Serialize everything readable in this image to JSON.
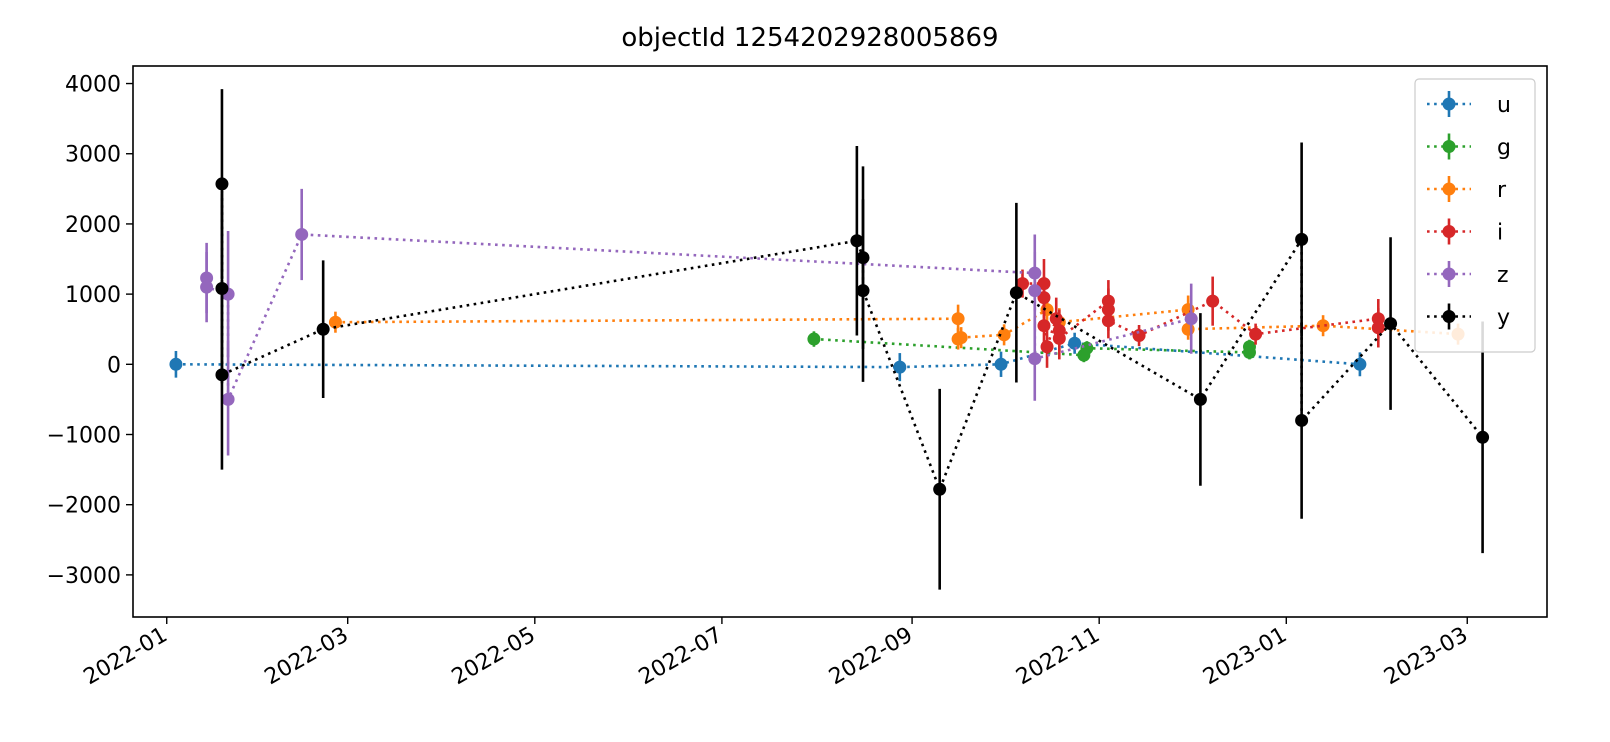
{
  "chart_data": {
    "type": "scatter",
    "title": "objectId 1254202928005869",
    "xlabel": "",
    "ylabel": "",
    "xlim": [
      "2021-12-21",
      "2023-03-27"
    ],
    "ylim": [
      -3600,
      4250
    ],
    "x_ticks": [
      "2022-01",
      "2022-03",
      "2022-05",
      "2022-07",
      "2022-09",
      "2022-11",
      "2023-01",
      "2023-03"
    ],
    "y_ticks": [
      4000,
      3000,
      2000,
      1000,
      0,
      -1000,
      -2000,
      -3000
    ],
    "y_tick_labels": [
      "4000",
      "3000",
      "2000",
      "1000",
      "0",
      "−1000",
      "−2000",
      "−3000"
    ],
    "grid": false,
    "legend_position": "top-right",
    "line_style": "dotted",
    "marker": "circle",
    "error_bars": true,
    "series": [
      {
        "name": "u",
        "color": "#1f77b4",
        "points": [
          {
            "x": "2022-01-04",
            "y": 0,
            "err": 190
          },
          {
            "x": "2022-08-28",
            "y": -40,
            "err": 200
          },
          {
            "x": "2022-09-30",
            "y": 0,
            "err": 180
          },
          {
            "x": "2022-10-24",
            "y": 300,
            "err": 150
          },
          {
            "x": "2023-01-25",
            "y": 0,
            "err": 170
          }
        ]
      },
      {
        "name": "g",
        "color": "#2ca02c",
        "points": [
          {
            "x": "2022-07-31",
            "y": 360,
            "err": 110
          },
          {
            "x": "2022-10-27",
            "y": 130,
            "err": 100
          },
          {
            "x": "2022-10-28",
            "y": 230,
            "err": 100
          },
          {
            "x": "2022-12-20",
            "y": 170,
            "err": 100
          },
          {
            "x": "2022-12-20",
            "y": 250,
            "err": 100
          }
        ]
      },
      {
        "name": "r",
        "color": "#ff7f0e",
        "points": [
          {
            "x": "2022-02-25",
            "y": 600,
            "err": 150
          },
          {
            "x": "2022-09-16",
            "y": 650,
            "err": 200
          },
          {
            "x": "2022-09-16",
            "y": 360,
            "err": 150
          },
          {
            "x": "2022-09-17",
            "y": 380,
            "err": 150
          },
          {
            "x": "2022-10-01",
            "y": 420,
            "err": 150
          },
          {
            "x": "2022-10-15",
            "y": 780,
            "err": 200
          },
          {
            "x": "2022-10-19",
            "y": 600,
            "err": 200
          },
          {
            "x": "2022-11-30",
            "y": 780,
            "err": 200
          },
          {
            "x": "2022-11-30",
            "y": 500,
            "err": 150
          },
          {
            "x": "2023-01-13",
            "y": 550,
            "err": 150
          },
          {
            "x": "2023-02-26",
            "y": 430,
            "err": 150
          }
        ]
      },
      {
        "name": "i",
        "color": "#d62728",
        "points": [
          {
            "x": "2022-10-07",
            "y": 1150,
            "err": 200
          },
          {
            "x": "2022-10-14",
            "y": 1150,
            "err": 350
          },
          {
            "x": "2022-10-14",
            "y": 950,
            "err": 300
          },
          {
            "x": "2022-10-14",
            "y": 550,
            "err": 300
          },
          {
            "x": "2022-10-15",
            "y": 250,
            "err": 300
          },
          {
            "x": "2022-10-18",
            "y": 650,
            "err": 300
          },
          {
            "x": "2022-10-19",
            "y": 480,
            "err": 300
          },
          {
            "x": "2022-10-19",
            "y": 370,
            "err": 300
          },
          {
            "x": "2022-11-04",
            "y": 900,
            "err": 300
          },
          {
            "x": "2022-11-04",
            "y": 780,
            "err": 300
          },
          {
            "x": "2022-11-04",
            "y": 620,
            "err": 250
          },
          {
            "x": "2022-11-14",
            "y": 410,
            "err": 150
          },
          {
            "x": "2022-12-08",
            "y": 900,
            "err": 350
          },
          {
            "x": "2022-12-22",
            "y": 430,
            "err": 150
          },
          {
            "x": "2023-01-31",
            "y": 650,
            "err": 280
          },
          {
            "x": "2023-01-31",
            "y": 520,
            "err": 280
          }
        ]
      },
      {
        "name": "z",
        "color": "#9467bd",
        "points": [
          {
            "x": "2022-01-14",
            "y": 1230,
            "err": 500
          },
          {
            "x": "2022-01-14",
            "y": 1100,
            "err": 500
          },
          {
            "x": "2022-01-21",
            "y": 1000,
            "err": 900
          },
          {
            "x": "2022-01-21",
            "y": -500,
            "err": 800
          },
          {
            "x": "2022-02-14",
            "y": 1850,
            "err": 650
          },
          {
            "x": "2022-10-11",
            "y": 1300,
            "err": 550
          },
          {
            "x": "2022-10-11",
            "y": 1050,
            "err": 550
          },
          {
            "x": "2022-10-11",
            "y": 80,
            "err": 600
          },
          {
            "x": "2022-12-01",
            "y": 650,
            "err": 500
          }
        ]
      },
      {
        "name": "y",
        "color": "#000000",
        "points": [
          {
            "x": "2022-01-19",
            "y": 2570,
            "err": 1350
          },
          {
            "x": "2022-01-19",
            "y": 1080,
            "err": 1350
          },
          {
            "x": "2022-01-19",
            "y": -150,
            "err": 1350
          },
          {
            "x": "2022-02-21",
            "y": 500,
            "err": 980
          },
          {
            "x": "2022-08-14",
            "y": 1760,
            "err": 1350
          },
          {
            "x": "2022-08-16",
            "y": 1520,
            "err": 1300
          },
          {
            "x": "2022-08-16",
            "y": 1050,
            "err": 1300
          },
          {
            "x": "2022-09-10",
            "y": -1780,
            "err": 1430
          },
          {
            "x": "2022-10-05",
            "y": 1020,
            "err": 1280
          },
          {
            "x": "2022-12-04",
            "y": -500,
            "err": 1230
          },
          {
            "x": "2023-01-06",
            "y": 1780,
            "err": 1380
          },
          {
            "x": "2023-01-06",
            "y": -800,
            "err": 1400
          },
          {
            "x": "2023-02-04",
            "y": 580,
            "err": 1230
          },
          {
            "x": "2023-03-06",
            "y": -1040,
            "err": 1650
          }
        ]
      }
    ]
  }
}
